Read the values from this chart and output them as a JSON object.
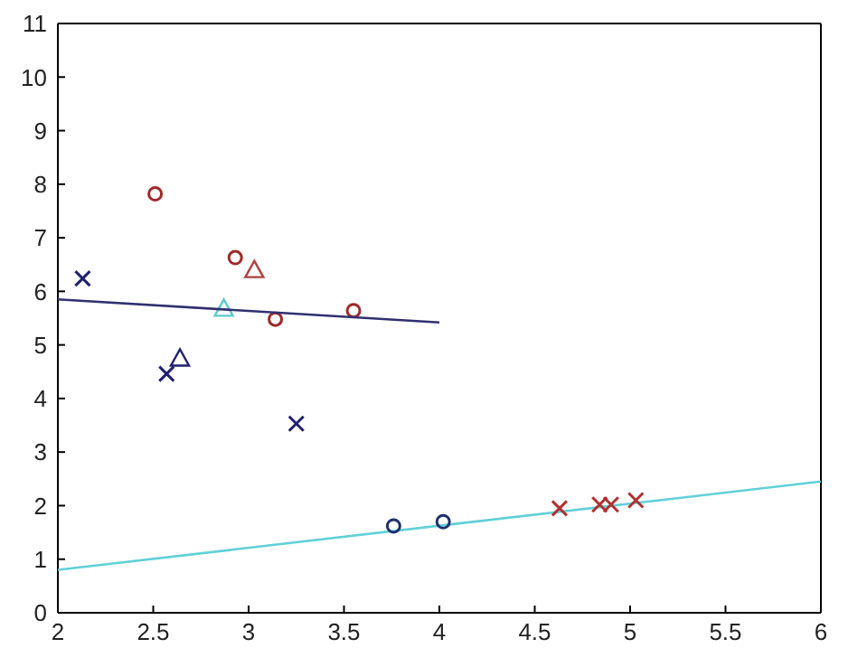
{
  "chart_data": {
    "type": "scatter",
    "xlim": [
      2,
      6
    ],
    "ylim": [
      0,
      11
    ],
    "xticks": [
      2,
      2.5,
      3,
      3.5,
      4,
      4.5,
      5,
      5.5,
      6
    ],
    "yticks": [
      0,
      1,
      2,
      3,
      4,
      5,
      6,
      7,
      8,
      9,
      10,
      11
    ],
    "series": [
      {
        "marker": "circle",
        "color": "#a02828",
        "x": [
          2.51,
          2.93,
          3.14,
          3.55
        ],
        "values": [
          7.82,
          6.63,
          5.48,
          5.64
        ]
      },
      {
        "marker": "triangle",
        "color": "#b04040",
        "x": [
          3.03
        ],
        "values": [
          6.4
        ]
      },
      {
        "marker": "cross",
        "color": "#202070",
        "x": [
          2.13,
          2.57,
          3.25
        ],
        "values": [
          6.24,
          4.46,
          3.53
        ]
      },
      {
        "marker": "triangle",
        "color": "#202070",
        "x": [
          2.64
        ],
        "values": [
          4.75
        ]
      },
      {
        "marker": "triangle",
        "color": "#60c8d0",
        "x": [
          2.87
        ],
        "values": [
          5.68
        ]
      },
      {
        "type": "line",
        "marker": "none",
        "color": "#303070",
        "x": [
          2,
          4
        ],
        "values": [
          5.85,
          5.42
        ]
      },
      {
        "type": "line",
        "marker": "none",
        "color": "#60d0d8",
        "x": [
          2,
          6
        ],
        "values": [
          0.8,
          2.45
        ]
      },
      {
        "marker": "circle",
        "color": "#203070",
        "x": [
          3.76,
          4.02
        ],
        "values": [
          1.62,
          1.7
        ]
      },
      {
        "marker": "cross",
        "color": "#b03030",
        "x": [
          4.63,
          4.84,
          4.9,
          5.03
        ],
        "values": [
          1.95,
          2.02,
          2.02,
          2.1
        ]
      }
    ]
  }
}
